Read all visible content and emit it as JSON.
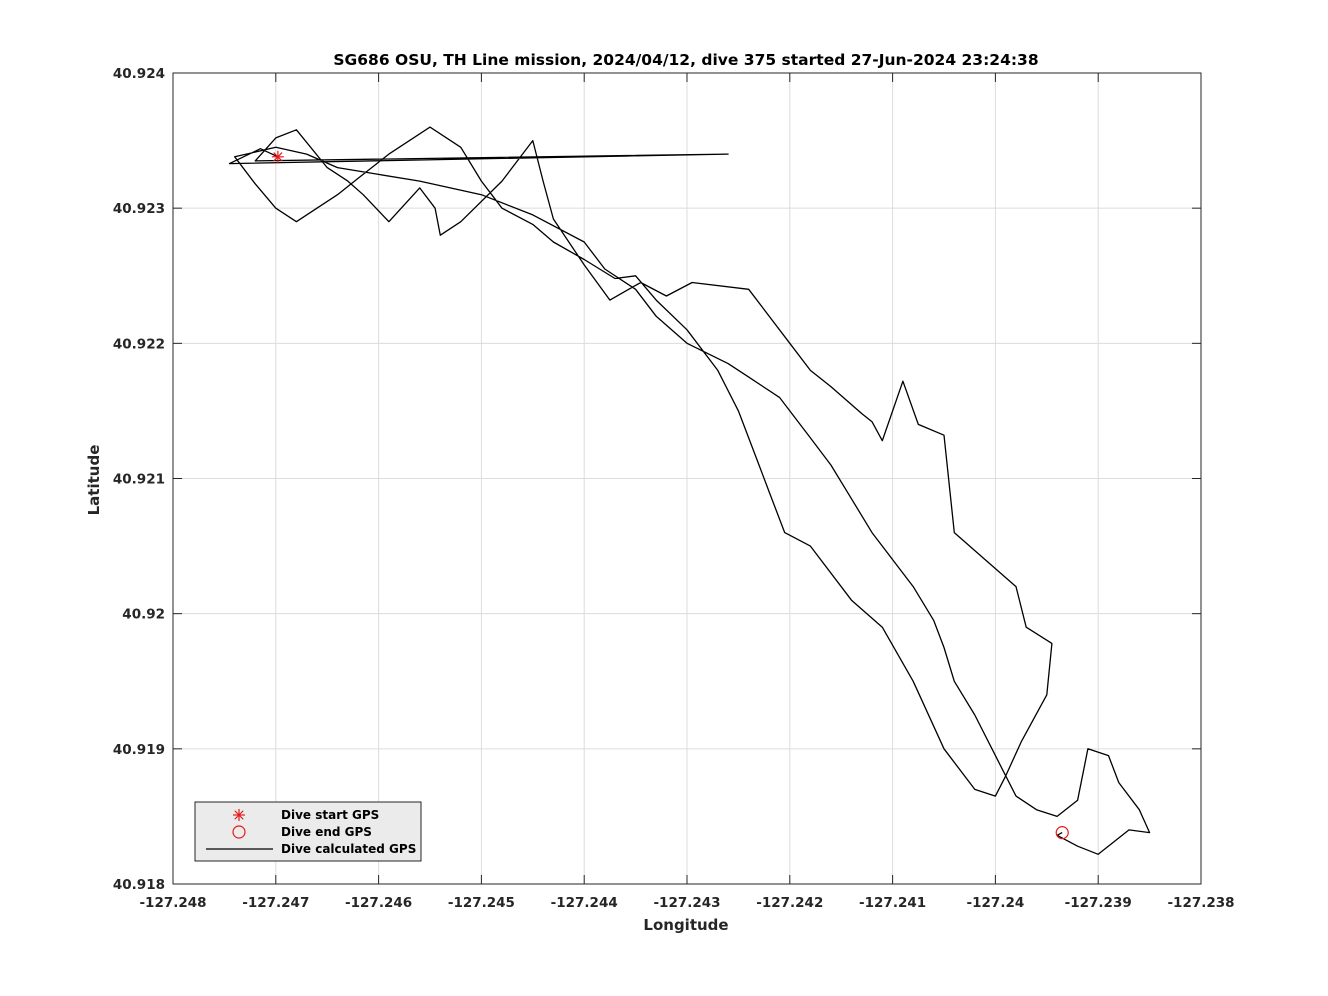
{
  "chart_data": {
    "type": "line",
    "title": "SG686 OSU, TH Line mission, 2024/04/12, dive 375 started 27-Jun-2024 23:24:38",
    "xlabel": "Longitude",
    "ylabel": "Latitude",
    "xlim": [
      -127.248,
      -127.238
    ],
    "ylim": [
      40.918,
      40.924
    ],
    "grid": true,
    "legend_placement": "bottom-left",
    "x_ticks": [
      -127.248,
      -127.247,
      -127.246,
      -127.245,
      -127.244,
      -127.243,
      -127.242,
      -127.241,
      -127.24,
      -127.239,
      -127.238
    ],
    "x_tick_labels": [
      "-127.248",
      "-127.247",
      "-127.246",
      "-127.245",
      "-127.244",
      "-127.243",
      "-127.242",
      "-127.241",
      "-127.24",
      "-127.239",
      "-127.238"
    ],
    "y_ticks": [
      40.918,
      40.919,
      40.92,
      40.921,
      40.922,
      40.923,
      40.924
    ],
    "y_tick_labels": [
      "40.918",
      "40.919",
      "40.92",
      "40.921",
      "40.922",
      "40.923",
      "40.924"
    ],
    "series": [
      {
        "name": "Dive start GPS",
        "marker": "asterisk",
        "color": "#e41a1c",
        "x": [
          -127.24698
        ],
        "y": [
          40.92338
        ]
      },
      {
        "name": "Dive end GPS",
        "marker": "circle",
        "color": "#e41a1c",
        "x": [
          -127.23935
        ],
        "y": [
          40.91838
        ]
      },
      {
        "name": "Dive calculated GPS",
        "marker": "line",
        "color": "#000000",
        "x": [
          -127.24698,
          -127.24715,
          -127.24745,
          -127.2426,
          -127.2472,
          -127.247,
          -127.2468,
          -127.2465,
          -127.2463,
          -127.24615,
          -127.2459,
          -127.2456,
          -127.24545,
          -127.2454,
          -127.2452,
          -127.2448,
          -127.2445,
          -127.2444,
          -127.2443,
          -127.244,
          -127.24375,
          -127.24345,
          -127.2432,
          -127.24295,
          -127.2424,
          -127.242,
          -127.2418,
          -127.2416,
          -127.2413,
          -127.2412,
          -127.2411,
          -127.2409,
          -127.24075,
          -127.2405,
          -127.2404,
          -127.2401,
          -127.2398,
          -127.2397,
          -127.23945,
          -127.2395,
          -127.23975,
          -127.2399,
          -127.24,
          -127.2402,
          -127.2405,
          -127.2408,
          -127.2411,
          -127.2414,
          -127.2418,
          -127.24205,
          -127.2422,
          -127.2423,
          -127.2425,
          -127.2427,
          -127.243,
          -127.2433,
          -127.2435,
          -127.2437,
          -127.244,
          -127.2443,
          -127.2445,
          -127.2448,
          -127.245,
          -127.2452,
          -127.2455,
          -127.2459,
          -127.2462,
          -127.2464,
          -127.2466,
          -127.2468,
          -127.247,
          -127.2472,
          -127.2474,
          -127.247,
          -127.2467,
          -127.2464,
          -127.246,
          -127.2456,
          -127.245,
          -127.2445,
          -127.244,
          -127.2438,
          -127.2435,
          -127.2433,
          -127.243,
          -127.2426,
          -127.2424,
          -127.2421,
          -127.2418,
          -127.2416,
          -127.2414,
          -127.2412,
          -127.241,
          -127.2408,
          -127.2406,
          -127.2405,
          -127.2404,
          -127.2402,
          -127.24,
          -127.2398,
          -127.2396,
          -127.2394,
          -127.2392,
          -127.2391,
          -127.2389,
          -127.2388,
          -127.2386,
          -127.2385,
          -127.2387,
          -127.239,
          -127.2392,
          -127.2394,
          -127.23935
        ],
        "y": [
          40.92338,
          40.92344,
          40.92333,
          40.9234,
          40.92335,
          40.92352,
          40.92358,
          40.9233,
          40.9232,
          40.9231,
          40.9229,
          40.92315,
          40.923,
          40.9228,
          40.9229,
          40.9232,
          40.9235,
          40.9232,
          40.92292,
          40.92258,
          40.92232,
          40.92245,
          40.92235,
          40.92245,
          40.9224,
          40.922,
          40.9218,
          40.92168,
          40.92148,
          40.92142,
          40.92128,
          40.92172,
          40.9214,
          40.92132,
          40.9206,
          40.9204,
          40.9202,
          40.9199,
          40.91978,
          40.9194,
          40.91905,
          40.9188,
          40.91865,
          40.9187,
          40.919,
          40.9195,
          40.9199,
          40.9201,
          40.9205,
          40.9206,
          40.9209,
          40.9211,
          40.9215,
          40.9218,
          40.9221,
          40.92232,
          40.9225,
          40.92248,
          40.92262,
          40.92275,
          40.92288,
          40.923,
          40.9232,
          40.92345,
          40.9236,
          40.9234,
          40.92322,
          40.9231,
          40.923,
          40.9229,
          40.923,
          40.92318,
          40.92338,
          40.92345,
          40.9234,
          40.9233,
          40.92325,
          40.9232,
          40.9231,
          40.92295,
          40.92275,
          40.92255,
          40.9224,
          40.9222,
          40.922,
          40.92185,
          40.92175,
          40.9216,
          40.9213,
          40.9211,
          40.92085,
          40.9206,
          40.9204,
          40.9202,
          40.91995,
          40.91975,
          40.9195,
          40.91925,
          40.91895,
          40.91865,
          40.91855,
          40.9185,
          40.91862,
          40.919,
          40.91895,
          40.91875,
          40.91855,
          40.91838,
          40.9184,
          40.91822,
          40.91828,
          40.91836,
          40.91838
        ]
      }
    ]
  }
}
